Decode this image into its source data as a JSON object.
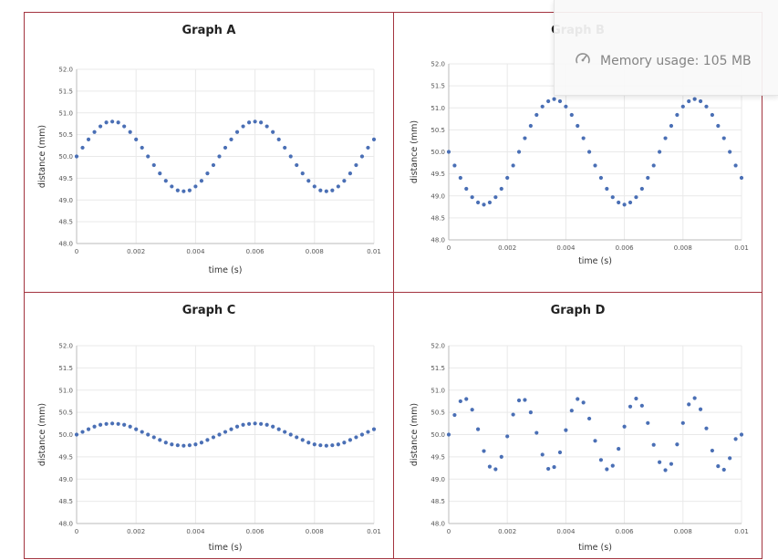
{
  "memory_tooltip": {
    "text": "Memory usage: 105 MB",
    "icon": "gauge-icon"
  },
  "series_color": "#4a6fb5",
  "chart_data": [
    {
      "type": "scatter",
      "title": "Graph A",
      "xlabel": "time (s)",
      "ylabel": "distance (mm)",
      "xlim": [
        0,
        0.01
      ],
      "ylim": [
        48.0,
        52.0
      ],
      "xticks": [
        "0",
        "0.002",
        "0.004",
        "0.006",
        "0.008",
        "0.01"
      ],
      "yticks": [
        "48.0",
        "48.5",
        "49.0",
        "49.5",
        "50.0",
        "50.5",
        "51.0",
        "51.5",
        "52.0"
      ],
      "x": [
        0,
        0.0002,
        0.0004,
        0.0006,
        0.0008,
        0.001,
        0.0012,
        0.0014,
        0.0016,
        0.0018,
        0.002,
        0.0022,
        0.0024,
        0.0026,
        0.0028,
        0.003,
        0.0032,
        0.0034,
        0.0036,
        0.0038,
        0.004,
        0.0042,
        0.0044,
        0.0046,
        0.0048,
        0.005,
        0.0052,
        0.0054,
        0.0056,
        0.0058,
        0.006,
        0.0062,
        0.0064,
        0.0066,
        0.0068,
        0.007,
        0.0072,
        0.0074,
        0.0076,
        0.0078,
        0.008,
        0.0082,
        0.0084,
        0.0086,
        0.0088,
        0.009,
        0.0092,
        0.0094,
        0.0096,
        0.0098,
        0.01
      ],
      "y": [
        50.0,
        50.2,
        50.39,
        50.56,
        50.69,
        50.78,
        50.8,
        50.78,
        50.69,
        50.56,
        50.39,
        50.2,
        50.0,
        49.8,
        49.61,
        49.44,
        49.31,
        49.22,
        49.2,
        49.22,
        49.31,
        49.44,
        49.61,
        49.8,
        50.0,
        50.2,
        50.39,
        50.56,
        50.69,
        50.78,
        50.8,
        50.78,
        50.69,
        50.56,
        50.39,
        50.2,
        50.0,
        49.8,
        49.61,
        49.44,
        49.31,
        49.22,
        49.2,
        49.22,
        49.31,
        49.44,
        49.61,
        49.8,
        50.0,
        50.2,
        50.39
      ],
      "grid": true
    },
    {
      "type": "scatter",
      "title": "Graph B",
      "xlabel": "time (s)",
      "ylabel": "distance (mm)",
      "xlim": [
        0,
        0.01
      ],
      "ylim": [
        48.0,
        52.0
      ],
      "xticks": [
        "0",
        "0.002",
        "0.004",
        "0.006",
        "0.008",
        "0.01"
      ],
      "yticks": [
        "48.0",
        "48.5",
        "49.0",
        "49.5",
        "50.0",
        "50.5",
        "51.0",
        "51.5",
        "52.0"
      ],
      "x": [
        0,
        0.0002,
        0.0004,
        0.0006,
        0.0008,
        0.001,
        0.0012,
        0.0014,
        0.0016,
        0.0018,
        0.002,
        0.0022,
        0.0024,
        0.0026,
        0.0028,
        0.003,
        0.0032,
        0.0034,
        0.0036,
        0.0038,
        0.004,
        0.0042,
        0.0044,
        0.0046,
        0.0048,
        0.005,
        0.0052,
        0.0054,
        0.0056,
        0.0058,
        0.006,
        0.0062,
        0.0064,
        0.0066,
        0.0068,
        0.007,
        0.0072,
        0.0074,
        0.0076,
        0.0078,
        0.008,
        0.0082,
        0.0084,
        0.0086,
        0.0088,
        0.009,
        0.0092,
        0.0094,
        0.0096,
        0.0098,
        0.01
      ],
      "y": [
        50.0,
        49.69,
        49.41,
        49.16,
        48.97,
        48.85,
        48.8,
        48.85,
        48.97,
        49.16,
        49.41,
        49.69,
        50.0,
        50.31,
        50.59,
        50.84,
        51.03,
        51.15,
        51.2,
        51.15,
        51.03,
        50.84,
        50.59,
        50.31,
        50.0,
        49.69,
        49.41,
        49.16,
        48.97,
        48.85,
        48.8,
        48.85,
        48.97,
        49.16,
        49.41,
        49.69,
        50.0,
        50.31,
        50.59,
        50.84,
        51.03,
        51.15,
        51.2,
        51.15,
        51.03,
        50.84,
        50.59,
        50.31,
        50.0,
        49.69,
        49.41
      ],
      "grid": true
    },
    {
      "type": "scatter",
      "title": "Graph C",
      "xlabel": "time (s)",
      "ylabel": "distance (mm)",
      "xlim": [
        0,
        0.01
      ],
      "ylim": [
        48.0,
        52.0
      ],
      "xticks": [
        "0",
        "0.002",
        "0.004",
        "0.006",
        "0.008",
        "0.01"
      ],
      "yticks": [
        "48.0",
        "48.5",
        "49.0",
        "49.5",
        "50.0",
        "50.5",
        "51.0",
        "51.5",
        "52.0"
      ],
      "x": [
        0,
        0.0002,
        0.0004,
        0.0006,
        0.0008,
        0.001,
        0.0012,
        0.0014,
        0.0016,
        0.0018,
        0.002,
        0.0022,
        0.0024,
        0.0026,
        0.0028,
        0.003,
        0.0032,
        0.0034,
        0.0036,
        0.0038,
        0.004,
        0.0042,
        0.0044,
        0.0046,
        0.0048,
        0.005,
        0.0052,
        0.0054,
        0.0056,
        0.0058,
        0.006,
        0.0062,
        0.0064,
        0.0066,
        0.0068,
        0.007,
        0.0072,
        0.0074,
        0.0076,
        0.0078,
        0.008,
        0.0082,
        0.0084,
        0.0086,
        0.0088,
        0.009,
        0.0092,
        0.0094,
        0.0096,
        0.0098,
        0.01
      ],
      "y": [
        50.0,
        50.06,
        50.12,
        50.18,
        50.22,
        50.24,
        50.25,
        50.24,
        50.22,
        50.18,
        50.12,
        50.06,
        50.0,
        49.94,
        49.88,
        49.82,
        49.78,
        49.76,
        49.75,
        49.76,
        49.78,
        49.82,
        49.88,
        49.94,
        50.0,
        50.06,
        50.12,
        50.18,
        50.22,
        50.24,
        50.25,
        50.24,
        50.22,
        50.18,
        50.12,
        50.06,
        50.0,
        49.94,
        49.88,
        49.82,
        49.78,
        49.76,
        49.75,
        49.76,
        49.78,
        49.82,
        49.88,
        49.94,
        50.0,
        50.06,
        50.12
      ],
      "grid": true
    },
    {
      "type": "scatter",
      "title": "Graph D",
      "xlabel": "time (s)",
      "ylabel": "distance (mm)",
      "xlim": [
        0,
        0.01
      ],
      "ylim": [
        48.0,
        52.0
      ],
      "xticks": [
        "0",
        "0.002",
        "0.004",
        "0.006",
        "0.008",
        "0.01"
      ],
      "yticks": [
        "48.0",
        "48.5",
        "49.0",
        "49.5",
        "50.0",
        "50.5",
        "51.0",
        "51.5",
        "52.0"
      ],
      "x": [
        0,
        0.0002,
        0.0004,
        0.0006,
        0.0008,
        0.001,
        0.0012,
        0.0014,
        0.0016,
        0.0018,
        0.002,
        0.0022,
        0.0024,
        0.0026,
        0.0028,
        0.003,
        0.0032,
        0.0034,
        0.0036,
        0.0038,
        0.004,
        0.0042,
        0.0044,
        0.0046,
        0.0048,
        0.005,
        0.0052,
        0.0054,
        0.0056,
        0.0058,
        0.006,
        0.0062,
        0.0064,
        0.0066,
        0.0068,
        0.007,
        0.0072,
        0.0074,
        0.0076,
        0.0078,
        0.008,
        0.0082,
        0.0084,
        0.0086,
        0.0088,
        0.009,
        0.0092,
        0.0094,
        0.0096,
        0.0098,
        0.01
      ],
      "y": [
        50.0,
        50.44,
        50.75,
        50.8,
        50.56,
        50.12,
        49.63,
        49.28,
        49.22,
        49.5,
        49.96,
        50.45,
        50.77,
        50.78,
        50.5,
        50.04,
        49.55,
        49.23,
        49.27,
        49.6,
        50.1,
        50.54,
        50.8,
        50.72,
        50.36,
        49.86,
        49.43,
        49.22,
        49.3,
        49.68,
        50.18,
        50.63,
        50.81,
        50.65,
        50.26,
        49.77,
        49.38,
        49.2,
        49.34,
        49.78,
        50.26,
        50.68,
        50.82,
        50.57,
        50.14,
        49.64,
        49.29,
        49.21,
        49.47,
        49.9,
        50.0
      ],
      "grid": true
    }
  ]
}
